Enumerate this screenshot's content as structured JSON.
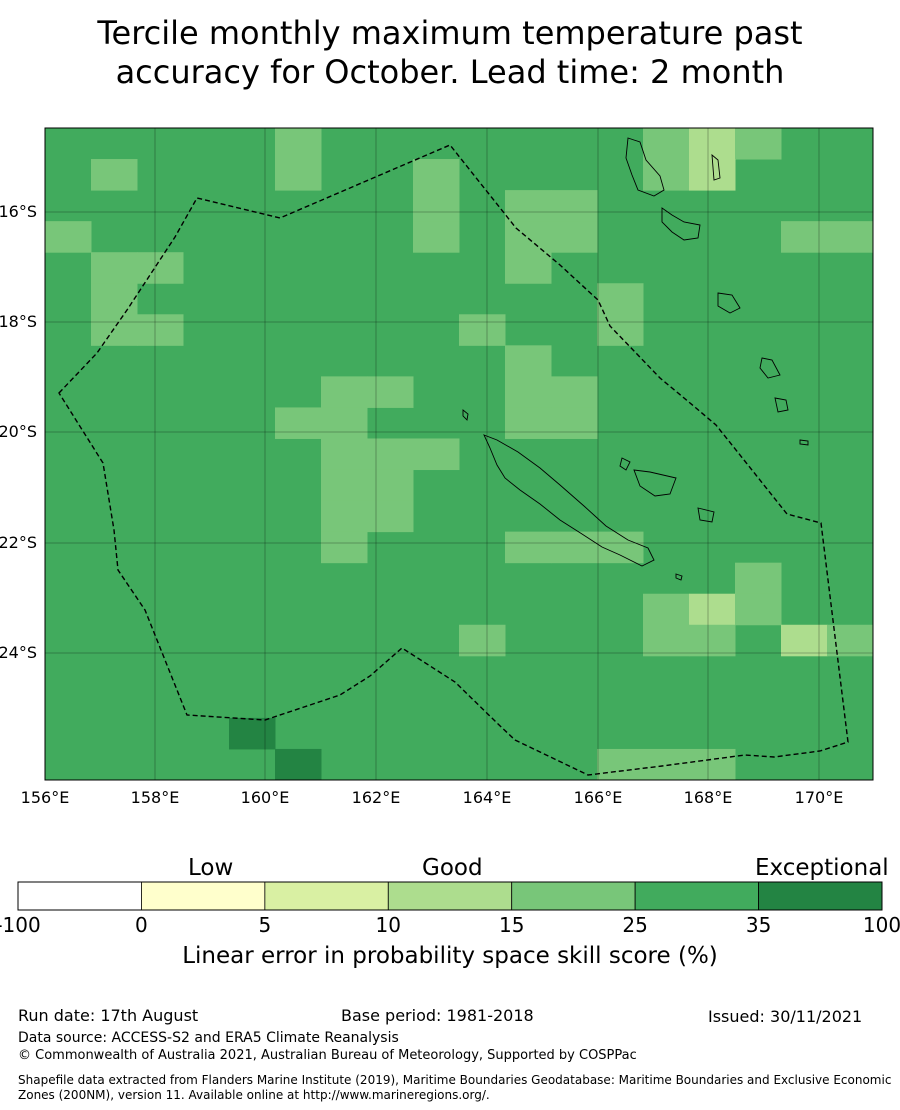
{
  "title": {
    "line1": "Tercile monthly maximum temperature past",
    "line2": "accuracy for October. Lead time: 2 month"
  },
  "map": {
    "lon_ticks": [
      "156°E",
      "158°E",
      "160°E",
      "162°E",
      "164°E",
      "166°E",
      "168°E",
      "170°E"
    ],
    "lat_ticks": [
      "16°S",
      "18°S",
      "20°S",
      "22°S",
      "24°S"
    ]
  },
  "colorbar": {
    "words": {
      "low": "Low",
      "good": "Good",
      "exceptional": "Exceptional"
    },
    "ticks": [
      "-100",
      "0",
      "5",
      "10",
      "15",
      "25",
      "35",
      "100"
    ],
    "colors": [
      "#ffffff",
      "#ffffcc",
      "#d9f0a3",
      "#addd8e",
      "#78c679",
      "#41ab5d",
      "#238443"
    ],
    "caption": "Linear error in probability space skill score (%)"
  },
  "footer": {
    "run_date": "Run date: 17th August",
    "base_period": "Base period: 1981-2018",
    "issued": "Issued: 30/11/2021",
    "data_source": "Data source: ACCESS-S2 and ERA5 Climate Reanalysis",
    "copyright": "© Commonwealth of Australia 2021, Australian Bureau of Meteorology, Supported by COSPPac",
    "shapefile": "Shapefile data extracted from Flanders Marine Institute (2019), Maritime Boundaries Geodatabase: Maritime Boundaries and Exclusive Economic Zones (200NM), version 11. Available online at http://www.marineregions.org/."
  }
}
